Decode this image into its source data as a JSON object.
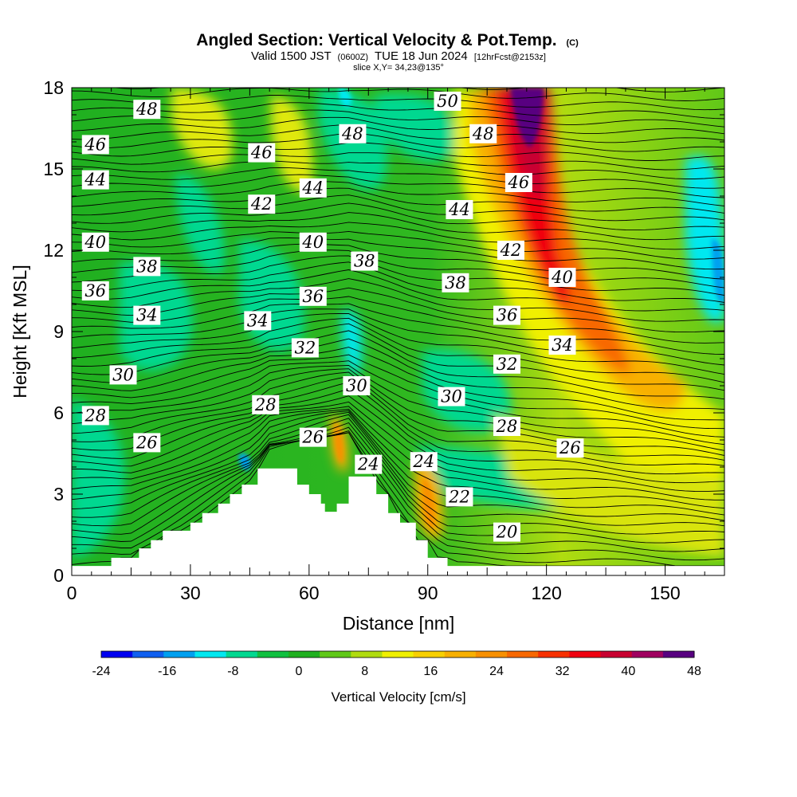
{
  "title": {
    "main": "Angled Section: Vertical Velocity & Pot.Temp.",
    "main_suffix": "(C)",
    "line2_a": "Valid 1500 JST",
    "line2_b": "(0600Z)",
    "line2_c": "TUE 18 Jun 2024",
    "line2_d": "[12hrFcst@2153z]",
    "line3": "slice X,Y= 34,23@135°"
  },
  "chart_data": {
    "type": "heatmap",
    "xlabel": "Distance [nm]",
    "ylabel": "Height [Kft MSL]",
    "xlim": [
      0,
      165
    ],
    "ylim": [
      0,
      18
    ],
    "x_ticks": [
      0,
      30,
      60,
      90,
      120,
      150
    ],
    "x_tick_labels": [
      "0",
      "30",
      "60",
      "90",
      "120",
      "150"
    ],
    "y_ticks": [
      0,
      3,
      6,
      9,
      12,
      15,
      18
    ],
    "y_tick_labels": [
      "0",
      "3",
      "6",
      "9",
      "12",
      "15",
      "18"
    ],
    "colorbar": {
      "title": "Vertical Velocity [cm/s]",
      "levels": [
        -24,
        -20,
        -16,
        -12,
        -8,
        -4,
        0,
        4,
        8,
        12,
        16,
        20,
        24,
        28,
        32,
        36,
        40,
        44,
        48
      ],
      "tick_labels": [
        "-24",
        "-16",
        "-8",
        "0",
        "8",
        "16",
        "24",
        "32",
        "40",
        "48"
      ],
      "colors": [
        "#0000f0",
        "#1060f0",
        "#00a0f0",
        "#00e8f0",
        "#00d890",
        "#10c040",
        "#20b020",
        "#60c818",
        "#b0dc10",
        "#f0f000",
        "#f8d000",
        "#f8b000",
        "#f89000",
        "#f86800",
        "#f83000",
        "#f00010",
        "#c80030",
        "#a00060",
        "#580080"
      ]
    },
    "terrain": [
      [
        0,
        0.35
      ],
      [
        10,
        0.35
      ],
      [
        10,
        0.65
      ],
      [
        17,
        0.65
      ],
      [
        17,
        1.0
      ],
      [
        20,
        1.0
      ],
      [
        20,
        1.3
      ],
      [
        23,
        1.3
      ],
      [
        23,
        1.65
      ],
      [
        30,
        1.65
      ],
      [
        30,
        1.95
      ],
      [
        33,
        1.95
      ],
      [
        33,
        2.3
      ],
      [
        37,
        2.3
      ],
      [
        37,
        2.65
      ],
      [
        40,
        2.65
      ],
      [
        40,
        3.0
      ],
      [
        43,
        3.0
      ],
      [
        43,
        3.35
      ],
      [
        47,
        3.35
      ],
      [
        47,
        3.95
      ],
      [
        57,
        3.95
      ],
      [
        57,
        3.35
      ],
      [
        60,
        3.35
      ],
      [
        60,
        3.0
      ],
      [
        63,
        3.0
      ],
      [
        63,
        2.65
      ],
      [
        64,
        2.65
      ],
      [
        64,
        2.35
      ],
      [
        67,
        2.35
      ],
      [
        67,
        2.65
      ],
      [
        70,
        2.65
      ],
      [
        70,
        3.65
      ],
      [
        77,
        3.65
      ],
      [
        77,
        3.0
      ],
      [
        80,
        3.0
      ],
      [
        80,
        2.3
      ],
      [
        83,
        2.3
      ],
      [
        83,
        1.95
      ],
      [
        87,
        1.95
      ],
      [
        87,
        1.3
      ],
      [
        90,
        1.3
      ],
      [
        90,
        0.65
      ],
      [
        95,
        0.65
      ],
      [
        95,
        0.35
      ],
      [
        165,
        0.35
      ]
    ],
    "theta_labels": [
      {
        "x": 19,
        "y": 17.2,
        "value": "48"
      },
      {
        "x": 6,
        "y": 15.9,
        "value": "46"
      },
      {
        "x": 6,
        "y": 14.6,
        "value": "44"
      },
      {
        "x": 48,
        "y": 15.6,
        "value": "46"
      },
      {
        "x": 71,
        "y": 16.3,
        "value": "48"
      },
      {
        "x": 95,
        "y": 17.5,
        "value": "50"
      },
      {
        "x": 104,
        "y": 16.3,
        "value": "48"
      },
      {
        "x": 113,
        "y": 14.5,
        "value": "46"
      },
      {
        "x": 98,
        "y": 13.5,
        "value": "44"
      },
      {
        "x": 61,
        "y": 14.3,
        "value": "44"
      },
      {
        "x": 48,
        "y": 13.7,
        "value": "42"
      },
      {
        "x": 6,
        "y": 12.3,
        "value": "40"
      },
      {
        "x": 61,
        "y": 12.3,
        "value": "40"
      },
      {
        "x": 111,
        "y": 12.0,
        "value": "42"
      },
      {
        "x": 19,
        "y": 11.4,
        "value": "38"
      },
      {
        "x": 74,
        "y": 11.6,
        "value": "38"
      },
      {
        "x": 97,
        "y": 10.8,
        "value": "38"
      },
      {
        "x": 124,
        "y": 11.0,
        "value": "40"
      },
      {
        "x": 6,
        "y": 10.5,
        "value": "36"
      },
      {
        "x": 61,
        "y": 10.3,
        "value": "36"
      },
      {
        "x": 110,
        "y": 9.6,
        "value": "36"
      },
      {
        "x": 19,
        "y": 9.6,
        "value": "34"
      },
      {
        "x": 47,
        "y": 9.4,
        "value": "34"
      },
      {
        "x": 124,
        "y": 8.5,
        "value": "34"
      },
      {
        "x": 59,
        "y": 8.4,
        "value": "32"
      },
      {
        "x": 110,
        "y": 7.8,
        "value": "32"
      },
      {
        "x": 13,
        "y": 7.4,
        "value": "30"
      },
      {
        "x": 72,
        "y": 7.0,
        "value": "30"
      },
      {
        "x": 96,
        "y": 6.6,
        "value": "30"
      },
      {
        "x": 6,
        "y": 5.9,
        "value": "28"
      },
      {
        "x": 49,
        "y": 6.3,
        "value": "28"
      },
      {
        "x": 110,
        "y": 5.5,
        "value": "28"
      },
      {
        "x": 19,
        "y": 4.9,
        "value": "26"
      },
      {
        "x": 61,
        "y": 5.1,
        "value": "26"
      },
      {
        "x": 126,
        "y": 4.7,
        "value": "26"
      },
      {
        "x": 75,
        "y": 4.1,
        "value": "24"
      },
      {
        "x": 89,
        "y": 4.2,
        "value": "24"
      },
      {
        "x": 98,
        "y": 2.9,
        "value": "22"
      },
      {
        "x": 110,
        "y": 1.6,
        "value": "20"
      }
    ]
  }
}
